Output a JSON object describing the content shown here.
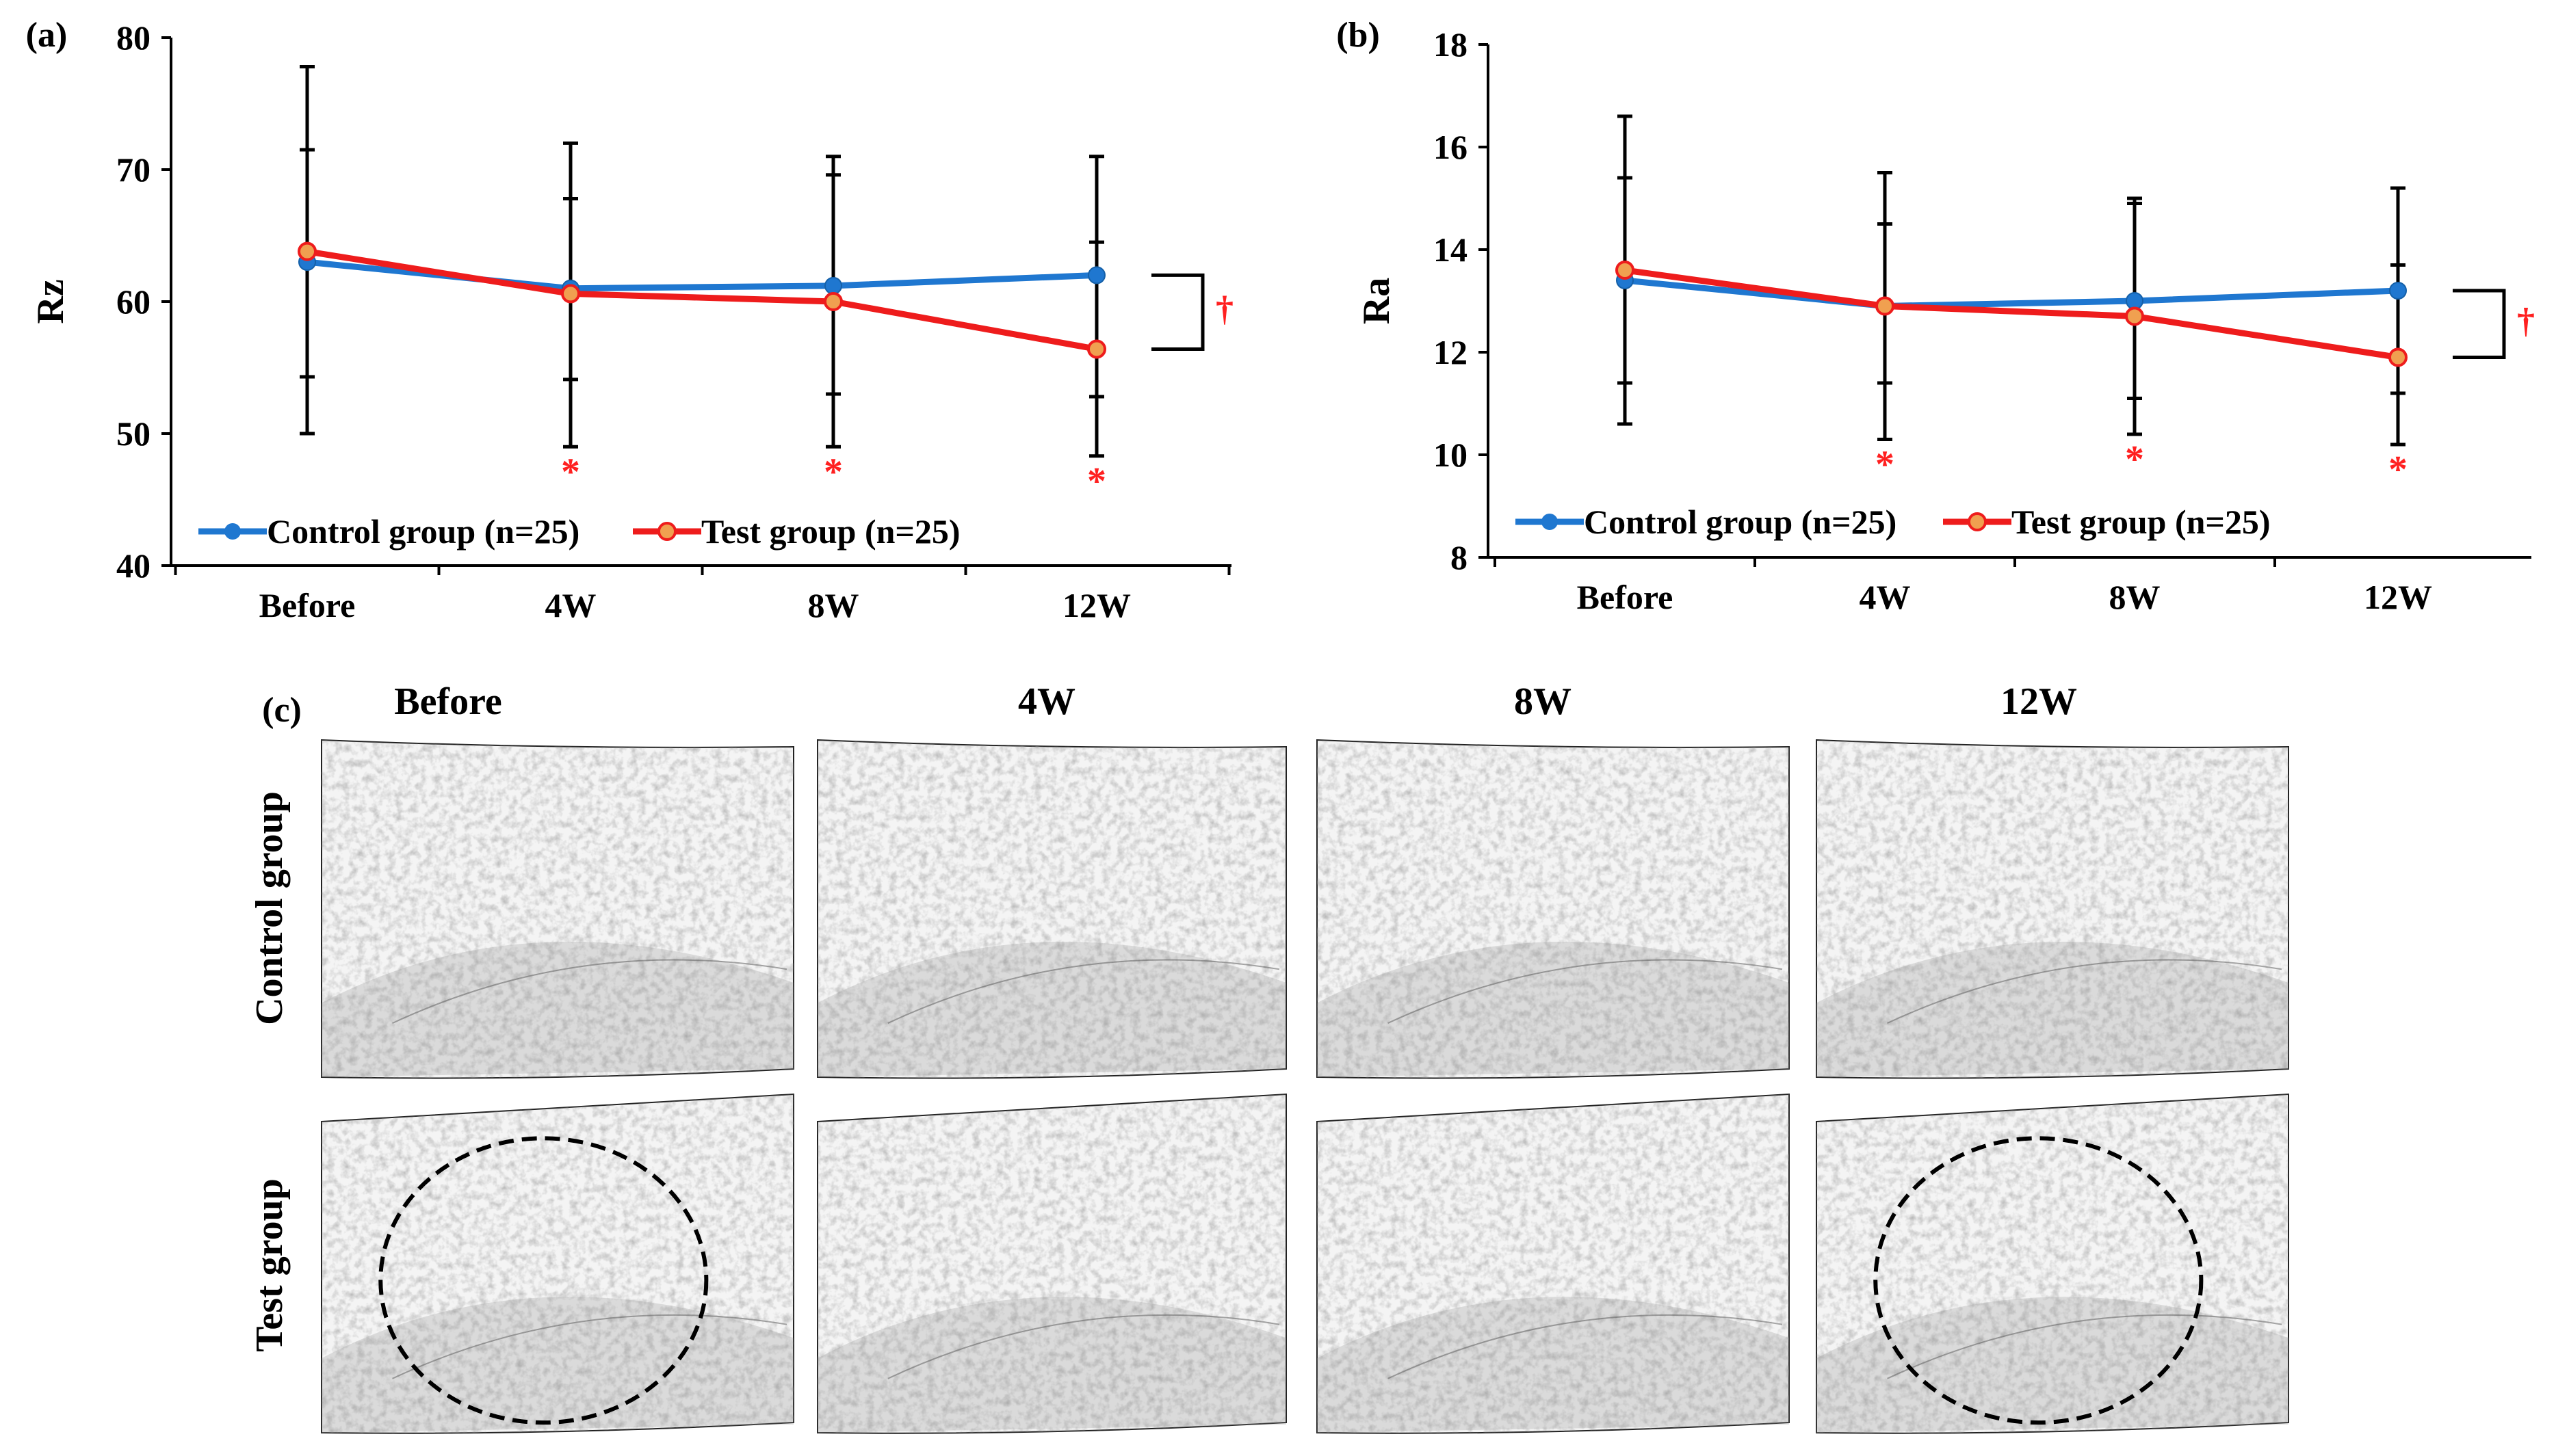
{
  "chart_data": [
    {
      "panel_label": "(a)",
      "type": "line",
      "ylabel": "Rz",
      "xlabel": "",
      "ylim": [
        40,
        80
      ],
      "yticks": [
        "40",
        "50",
        "60",
        "70",
        "80"
      ],
      "categories": [
        "Before",
        "4W",
        "8W",
        "12W"
      ],
      "series": [
        {
          "name": "Control group (n=25)",
          "color": "#1f77d0",
          "values": [
            63.0,
            61.0,
            61.2,
            62.0
          ],
          "err_low": [
            50.0,
            49.0,
            49.0,
            48.3
          ],
          "err_high": [
            77.8,
            72.0,
            71.0,
            71.0
          ]
        },
        {
          "name": "Test group (n=25)",
          "color": "#ee1c1c",
          "values": [
            63.8,
            60.6,
            60.0,
            56.4
          ],
          "err_low": [
            54.3,
            54.1,
            53.0,
            52.8
          ],
          "err_high": [
            71.5,
            67.8,
            69.6,
            64.5
          ]
        }
      ],
      "significance_markers": [
        "",
        "*",
        "*",
        "*"
      ],
      "bracket_marker": "†"
    },
    {
      "panel_label": "(b)",
      "type": "line",
      "ylabel": "Ra",
      "xlabel": "",
      "ylim": [
        8,
        18
      ],
      "yticks": [
        "8",
        "10",
        "12",
        "14",
        "16",
        "18"
      ],
      "categories": [
        "Before",
        "4W",
        "8W",
        "12W"
      ],
      "series": [
        {
          "name": "Control group (n=25)",
          "color": "#1f77d0",
          "values": [
            13.4,
            12.9,
            13.0,
            13.2
          ],
          "err_low": [
            10.6,
            10.3,
            10.4,
            10.2
          ],
          "err_high": [
            16.6,
            15.5,
            15.0,
            15.2
          ]
        },
        {
          "name": "Test group (n=25)",
          "color": "#ee1c1c",
          "values": [
            13.6,
            12.9,
            12.7,
            11.9
          ],
          "err_low": [
            11.4,
            11.4,
            11.1,
            11.2
          ],
          "err_high": [
            15.4,
            14.5,
            14.9,
            13.7
          ]
        }
      ],
      "significance_markers": [
        "",
        "*",
        "*",
        "*"
      ],
      "bracket_marker": "†"
    }
  ],
  "panel_c": {
    "label": "(c)",
    "columns": [
      "Before",
      "4W",
      "8W",
      "12W"
    ],
    "rows": [
      "Control group",
      "Test group"
    ],
    "circled": [
      "Test group|Before",
      "Test group|12W"
    ]
  }
}
